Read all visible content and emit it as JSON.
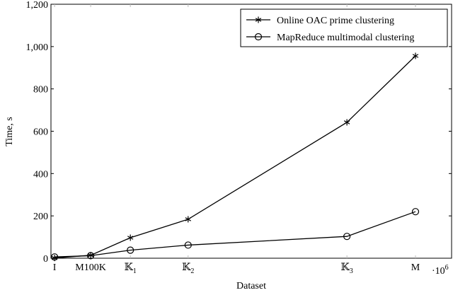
{
  "chart_data": {
    "type": "line",
    "title": "",
    "xlabel": "Dataset",
    "ylabel": "Time, s",
    "x_multiplier_label": "·10",
    "x_multiplier_exp": "6",
    "categories": [
      "I",
      "M100K",
      "𝕂1",
      "𝕂2",
      "𝕂3",
      "M"
    ],
    "category_labels": [
      {
        "main": "I",
        "sub": ""
      },
      {
        "main": "M100K",
        "sub": ""
      },
      {
        "main": "𝕂",
        "sub": "1"
      },
      {
        "main": "𝕂",
        "sub": "2"
      },
      {
        "main": "𝕂",
        "sub": "3"
      },
      {
        "main": "M",
        "sub": ""
      }
    ],
    "x": [
      0,
      1.0,
      2.1,
      3.7,
      8.1,
      10.0
    ],
    "xlim": [
      -0.1,
      11.0
    ],
    "ylim": [
      0,
      1200
    ],
    "yticks": [
      0,
      200,
      400,
      600,
      800,
      1000,
      1200
    ],
    "ytick_labels": [
      "0",
      "200",
      "400",
      "600",
      "800",
      "1,000",
      "1,200"
    ],
    "grid": false,
    "legend_position": "top-right",
    "series": [
      {
        "name": "Online OAC prime clustering",
        "marker": "asterisk",
        "values": [
          1,
          14,
          97,
          184,
          642,
          956
        ]
      },
      {
        "name": "MapReduce multimodal clustering",
        "marker": "circle",
        "values": [
          6,
          12,
          38,
          62,
          103,
          220
        ]
      }
    ]
  }
}
